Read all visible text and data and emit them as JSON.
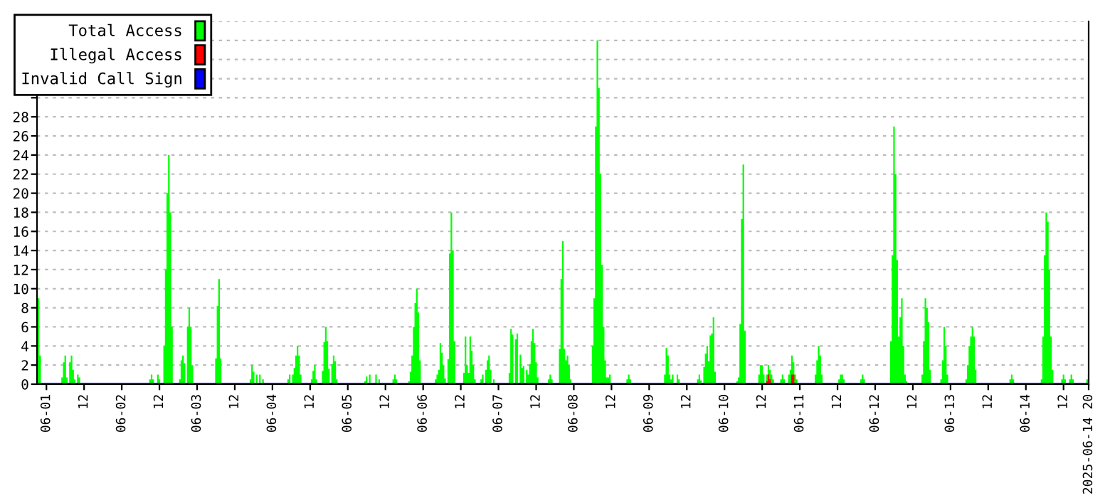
{
  "chart_data": {
    "type": "area",
    "series": [
      {
        "name": "Total Access",
        "color": "#00ff00",
        "x": [
          "2025-05-31T21:00",
          "2025-05-31T21:30",
          "2025-05-31T22:00",
          "2025-05-31T22:30",
          "2025-06-01T05:00",
          "2025-06-01T05:30",
          "2025-06-01T06:00",
          "2025-06-01T06:30",
          "2025-06-01T07:30",
          "2025-06-01T08:00",
          "2025-06-01T08:30",
          "2025-06-01T09:00",
          "2025-06-01T10:00",
          "2025-06-01T10:30",
          "2025-06-01T11:00",
          "2025-06-02T09:00",
          "2025-06-02T09:30",
          "2025-06-02T10:00",
          "2025-06-02T11:30",
          "2025-06-02T12:00",
          "2025-06-02T12:30",
          "2025-06-02T13:30",
          "2025-06-02T14:00",
          "2025-06-02T14:30",
          "2025-06-02T15:00",
          "2025-06-02T15:30",
          "2025-06-02T16:00",
          "2025-06-02T16:30",
          "2025-06-02T18:30",
          "2025-06-02T19:00",
          "2025-06-02T19:30",
          "2025-06-02T20:00",
          "2025-06-02T21:00",
          "2025-06-02T21:30",
          "2025-06-02T22:00",
          "2025-06-02T22:30",
          "2025-06-02T23:00",
          "2025-06-03T06:00",
          "2025-06-03T06:30",
          "2025-06-03T07:00",
          "2025-06-03T07:30",
          "2025-06-03T08:00",
          "2025-06-03T17:00",
          "2025-06-03T17:30",
          "2025-06-03T18:00",
          "2025-06-03T19:00",
          "2025-06-03T20:00",
          "2025-06-03T21:00",
          "2025-06-03T21:30",
          "2025-06-04T05:00",
          "2025-06-04T05:30",
          "2025-06-04T06:30",
          "2025-06-04T07:00",
          "2025-06-04T07:30",
          "2025-06-04T08:00",
          "2025-06-04T08:30",
          "2025-06-04T09:00",
          "2025-06-04T09:30",
          "2025-06-04T12:30",
          "2025-06-04T13:00",
          "2025-06-04T13:30",
          "2025-06-04T14:00",
          "2025-06-04T14:30",
          "2025-06-04T16:00",
          "2025-06-04T16:30",
          "2025-06-04T17:00",
          "2025-06-04T17:30",
          "2025-06-04T18:00",
          "2025-06-04T18:30",
          "2025-06-04T19:00",
          "2025-06-04T19:30",
          "2025-06-04T20:00",
          "2025-06-04T20:30",
          "2025-06-04T21:00",
          "2025-06-05T05:30",
          "2025-06-05T06:00",
          "2025-06-05T07:00",
          "2025-06-05T09:00",
          "2025-06-05T10:00",
          "2025-06-05T10:30",
          "2025-06-05T14:30",
          "2025-06-05T15:00",
          "2025-06-05T15:30",
          "2025-06-05T16:00",
          "2025-06-05T19:30",
          "2025-06-05T20:00",
          "2025-06-05T20:30",
          "2025-06-05T21:00",
          "2025-06-05T21:30",
          "2025-06-05T22:00",
          "2025-06-05T22:30",
          "2025-06-05T23:00",
          "2025-06-05T23:30",
          "2025-06-06T04:00",
          "2025-06-06T04:30",
          "2025-06-06T05:00",
          "2025-06-06T05:30",
          "2025-06-06T06:00",
          "2025-06-06T06:30",
          "2025-06-06T07:00",
          "2025-06-06T08:00",
          "2025-06-06T08:30",
          "2025-06-06T09:00",
          "2025-06-06T09:30",
          "2025-06-06T10:00",
          "2025-06-06T10:30",
          "2025-06-06T13:00",
          "2025-06-06T13:30",
          "2025-06-06T14:00",
          "2025-06-06T14:30",
          "2025-06-06T15:00",
          "2025-06-06T15:30",
          "2025-06-06T16:00",
          "2025-06-06T16:30",
          "2025-06-06T17:00",
          "2025-06-06T18:30",
          "2025-06-06T19:00",
          "2025-06-06T20:00",
          "2025-06-06T20:30",
          "2025-06-06T21:00",
          "2025-06-06T21:30",
          "2025-06-06T22:30",
          "2025-06-06T23:00",
          "2025-06-07T03:30",
          "2025-06-07T04:00",
          "2025-06-07T04:30",
          "2025-06-07T05:30",
          "2025-06-07T06:00",
          "2025-06-07T07:00",
          "2025-06-07T07:30",
          "2025-06-07T08:00",
          "2025-06-07T09:00",
          "2025-06-07T09:30",
          "2025-06-07T10:00",
          "2025-06-07T10:30",
          "2025-06-07T11:00",
          "2025-06-07T11:30",
          "2025-06-07T12:00",
          "2025-06-07T12:30",
          "2025-06-07T13:00",
          "2025-06-07T16:00",
          "2025-06-07T16:30",
          "2025-06-07T17:00",
          "2025-06-07T17:30",
          "2025-06-07T19:30",
          "2025-06-07T20:00",
          "2025-06-07T20:30",
          "2025-06-07T21:00",
          "2025-06-07T21:30",
          "2025-06-07T22:00",
          "2025-06-07T22:30",
          "2025-06-07T23:00",
          "2025-06-07T23:30",
          "2025-06-08T06:00",
          "2025-06-08T06:30",
          "2025-06-08T07:00",
          "2025-06-08T07:30",
          "2025-06-08T08:00",
          "2025-06-08T08:30",
          "2025-06-08T09:00",
          "2025-06-08T09:30",
          "2025-06-08T10:00",
          "2025-06-08T10:30",
          "2025-06-08T11:00",
          "2025-06-08T11:30",
          "2025-06-08T12:00",
          "2025-06-08T17:00",
          "2025-06-08T17:30",
          "2025-06-08T18:00",
          "2025-06-08T18:30",
          "2025-06-09T05:00",
          "2025-06-09T05:30",
          "2025-06-09T06:00",
          "2025-06-09T06:30",
          "2025-06-09T07:00",
          "2025-06-09T07:30",
          "2025-06-09T09:00",
          "2025-06-09T09:30",
          "2025-06-09T10:00",
          "2025-06-09T15:30",
          "2025-06-09T16:00",
          "2025-06-09T16:30",
          "2025-06-09T17:30",
          "2025-06-09T18:00",
          "2025-06-09T18:30",
          "2025-06-09T19:00",
          "2025-06-09T19:30",
          "2025-06-09T20:00",
          "2025-06-09T20:30",
          "2025-06-09T21:00",
          "2025-06-09T21:30",
          "2025-06-10T04:00",
          "2025-06-10T04:30",
          "2025-06-10T05:00",
          "2025-06-10T05:30",
          "2025-06-10T06:00",
          "2025-06-10T06:30",
          "2025-06-10T07:00",
          "2025-06-10T11:00",
          "2025-06-10T11:30",
          "2025-06-10T12:00",
          "2025-06-10T12:30",
          "2025-06-10T13:00",
          "2025-06-10T13:30",
          "2025-06-10T14:00",
          "2025-06-10T14:30",
          "2025-06-10T15:00",
          "2025-06-10T15:30",
          "2025-06-10T16:00",
          "2025-06-10T18:00",
          "2025-06-10T18:30",
          "2025-06-10T19:00",
          "2025-06-10T19:30",
          "2025-06-10T20:30",
          "2025-06-10T21:00",
          "2025-06-10T21:30",
          "2025-06-10T22:00",
          "2025-06-10T22:30",
          "2025-06-10T23:00",
          "2025-06-10T23:30",
          "2025-06-11T05:00",
          "2025-06-11T05:30",
          "2025-06-11T06:00",
          "2025-06-11T06:30",
          "2025-06-11T07:00",
          "2025-06-11T07:30",
          "2025-06-11T12:30",
          "2025-06-11T13:00",
          "2025-06-11T13:30",
          "2025-06-11T14:00",
          "2025-06-11T14:30",
          "2025-06-11T19:30",
          "2025-06-11T20:00",
          "2025-06-11T20:30",
          "2025-06-11T21:00",
          "2025-06-12T05:00",
          "2025-06-12T05:30",
          "2025-06-12T06:00",
          "2025-06-12T06:30",
          "2025-06-12T07:00",
          "2025-06-12T07:30",
          "2025-06-12T08:00",
          "2025-06-12T08:30",
          "2025-06-12T09:00",
          "2025-06-12T09:30",
          "2025-06-12T10:00",
          "2025-06-12T10:30",
          "2025-06-12T15:00",
          "2025-06-12T15:30",
          "2025-06-12T16:00",
          "2025-06-12T16:30",
          "2025-06-12T17:00",
          "2025-06-12T17:30",
          "2025-06-12T18:00",
          "2025-06-12T21:00",
          "2025-06-12T21:30",
          "2025-06-12T22:00",
          "2025-06-12T22:30",
          "2025-06-12T23:00",
          "2025-06-12T23:30",
          "2025-06-13T05:00",
          "2025-06-13T05:30",
          "2025-06-13T06:00",
          "2025-06-13T06:30",
          "2025-06-13T07:00",
          "2025-06-13T07:30",
          "2025-06-13T08:00",
          "2025-06-13T08:30",
          "2025-06-13T19:00",
          "2025-06-13T19:30",
          "2025-06-13T20:00",
          "2025-06-13T20:30",
          "2025-06-14T05:00",
          "2025-06-14T05:30",
          "2025-06-14T06:00",
          "2025-06-14T06:30",
          "2025-06-14T07:00",
          "2025-06-14T07:30",
          "2025-06-14T08:00",
          "2025-06-14T08:30",
          "2025-06-14T09:00",
          "2025-06-14T11:30",
          "2025-06-14T12:00",
          "2025-06-14T12:30",
          "2025-06-14T13:00",
          "2025-06-14T14:00",
          "2025-06-14T14:30",
          "2025-06-14T15:00",
          "2025-06-14T15:30",
          "2025-06-14T19:30",
          "2025-06-14T20:00"
        ],
        "values": [
          12,
          9,
          3,
          0,
          0.7,
          2.3,
          3,
          0.7,
          2.3,
          3,
          1.5,
          0.5,
          1,
          0.7,
          0,
          0.5,
          1,
          0.5,
          1,
          0.5,
          0,
          4,
          12,
          20,
          24,
          18,
          6,
          0,
          0.5,
          2.5,
          3,
          2.2,
          6,
          8,
          6,
          2,
          0,
          2.7,
          8.2,
          11,
          2.7,
          0,
          0.5,
          2,
          1.3,
          1,
          1,
          0.5,
          0,
          0.5,
          1,
          1,
          1.7,
          3,
          4,
          3,
          1,
          0,
          0.5,
          1.4,
          2,
          0.5,
          0,
          1.4,
          4.4,
          6,
          4.5,
          1.6,
          0,
          2.1,
          3,
          2.4,
          0.5,
          0,
          0.3,
          0.8,
          1,
          1,
          0.5,
          0,
          0.5,
          1,
          0.5,
          0,
          0.3,
          1.3,
          3,
          6,
          8.5,
          10,
          7.5,
          2.5,
          0,
          0.5,
          1,
          1.5,
          4.3,
          3.3,
          2,
          0.6,
          2.6,
          13.7,
          18,
          14,
          4.5,
          0,
          1.2,
          5,
          2,
          1.2,
          5,
          3.5,
          2,
          0.5,
          0,
          0.5,
          1,
          1.5,
          2.5,
          3,
          1.5,
          0.5,
          0,
          1.2,
          5.8,
          5.2,
          4.7,
          5.3,
          3.1,
          1.7,
          1.9,
          1.5,
          1,
          2.1,
          4.5,
          5.8,
          4.3,
          2.3,
          0.7,
          0,
          0.5,
          1,
          0.5,
          0,
          3.7,
          11,
          15,
          3.7,
          2.5,
          3,
          2,
          0.5,
          0,
          4,
          9,
          27,
          36,
          31,
          22,
          12.5,
          6,
          2.5,
          0.7,
          0.7,
          1,
          0,
          0.5,
          1,
          0.5,
          0,
          1,
          3.8,
          3,
          1,
          0.5,
          1,
          1,
          0.5,
          0,
          0.5,
          1,
          0.4,
          1.8,
          3.2,
          4,
          2.4,
          5.1,
          5.3,
          7,
          1.3,
          0,
          0.3,
          0.7,
          6.3,
          17.3,
          23,
          5.6,
          0,
          1,
          2,
          2,
          1,
          0,
          1,
          2,
          1.5,
          1,
          0.5,
          0,
          0.5,
          1,
          0.5,
          0,
          1,
          1.5,
          3,
          2.3,
          1,
          0.5,
          0,
          1,
          2.5,
          4,
          3,
          1,
          0,
          0.5,
          1,
          1,
          0.5,
          0,
          0.5,
          1,
          0.5,
          0,
          4.5,
          13.5,
          27,
          22,
          13,
          5,
          7,
          9,
          4,
          1,
          0.3,
          0,
          1,
          4.5,
          9,
          8,
          6.5,
          1.5,
          0,
          0.5,
          2.5,
          6,
          4,
          1,
          0,
          0.5,
          2,
          4,
          5,
          6,
          5,
          1.5,
          0,
          0.5,
          1,
          0.5,
          0,
          0.5,
          5,
          13.5,
          18,
          17,
          12,
          5,
          1.5,
          0,
          0.5,
          1,
          0.5,
          0,
          0.5,
          1,
          0.5,
          0,
          0.5,
          1
        ]
      },
      {
        "name": "Illegal Access",
        "color": "#ff0000",
        "x": [
          "2025-06-10T13:30",
          "2025-06-10T14:00",
          "2025-06-10T14:30",
          "2025-06-10T15:00",
          "2025-06-10T21:30",
          "2025-06-10T22:00",
          "2025-06-10T22:30"
        ],
        "values": [
          0.3,
          1,
          0.5,
          0,
          1,
          1,
          0
        ]
      },
      {
        "name": "Invalid Call Sign",
        "color": "#0000ff",
        "type": "line",
        "x": [
          "2025-05-31T21:00",
          "2025-06-14T20:00"
        ],
        "values": [
          0,
          0
        ]
      }
    ],
    "xlim": [
      "2025-05-31T21:00",
      "2025-06-14T20:00"
    ],
    "xticks": [
      {
        "value": "2025-06-01T00:00",
        "label": "06-01"
      },
      {
        "value": "2025-06-01T12:00",
        "label": "12"
      },
      {
        "value": "2025-06-02T00:00",
        "label": "06-02"
      },
      {
        "value": "2025-06-02T12:00",
        "label": "12"
      },
      {
        "value": "2025-06-03T00:00",
        "label": "06-03"
      },
      {
        "value": "2025-06-03T12:00",
        "label": "12"
      },
      {
        "value": "2025-06-04T00:00",
        "label": "06-04"
      },
      {
        "value": "2025-06-04T12:00",
        "label": "12"
      },
      {
        "value": "2025-06-05T00:00",
        "label": "06-05"
      },
      {
        "value": "2025-06-05T12:00",
        "label": "12"
      },
      {
        "value": "2025-06-06T00:00",
        "label": "06-06"
      },
      {
        "value": "2025-06-06T12:00",
        "label": "12"
      },
      {
        "value": "2025-06-07T00:00",
        "label": "06-07"
      },
      {
        "value": "2025-06-07T12:00",
        "label": "12"
      },
      {
        "value": "2025-06-08T00:00",
        "label": "06-08"
      },
      {
        "value": "2025-06-08T12:00",
        "label": "12"
      },
      {
        "value": "2025-06-09T00:00",
        "label": "06-09"
      },
      {
        "value": "2025-06-09T12:00",
        "label": "12"
      },
      {
        "value": "2025-06-10T00:00",
        "label": "06-10"
      },
      {
        "value": "2025-06-10T12:00",
        "label": "12"
      },
      {
        "value": "2025-06-11T00:00",
        "label": "06-11"
      },
      {
        "value": "2025-06-11T12:00",
        "label": "12"
      },
      {
        "value": "2025-06-12T00:00",
        "label": "06-12"
      },
      {
        "value": "2025-06-12T12:00",
        "label": "12"
      },
      {
        "value": "2025-06-13T00:00",
        "label": "06-13"
      },
      {
        "value": "2025-06-13T12:00",
        "label": "12"
      },
      {
        "value": "2025-06-14T00:00",
        "label": "06-14"
      },
      {
        "value": "2025-06-14T12:00",
        "label": "12"
      },
      {
        "value": "2025-06-14T20:00",
        "label": "2025-06-14 20"
      }
    ],
    "ylim": [
      0,
      38
    ],
    "yticks": [
      0,
      2,
      4,
      6,
      8,
      10,
      12,
      14,
      16,
      18,
      20,
      22,
      24,
      26,
      28,
      {
        "value": 30,
        "label": null
      },
      {
        "value": 32,
        "label": null
      },
      {
        "value": 34,
        "label": null
      },
      {
        "value": 36,
        "label": null
      },
      {
        "value": 38,
        "label": null
      }
    ],
    "grid": "y",
    "legend": "top left"
  }
}
